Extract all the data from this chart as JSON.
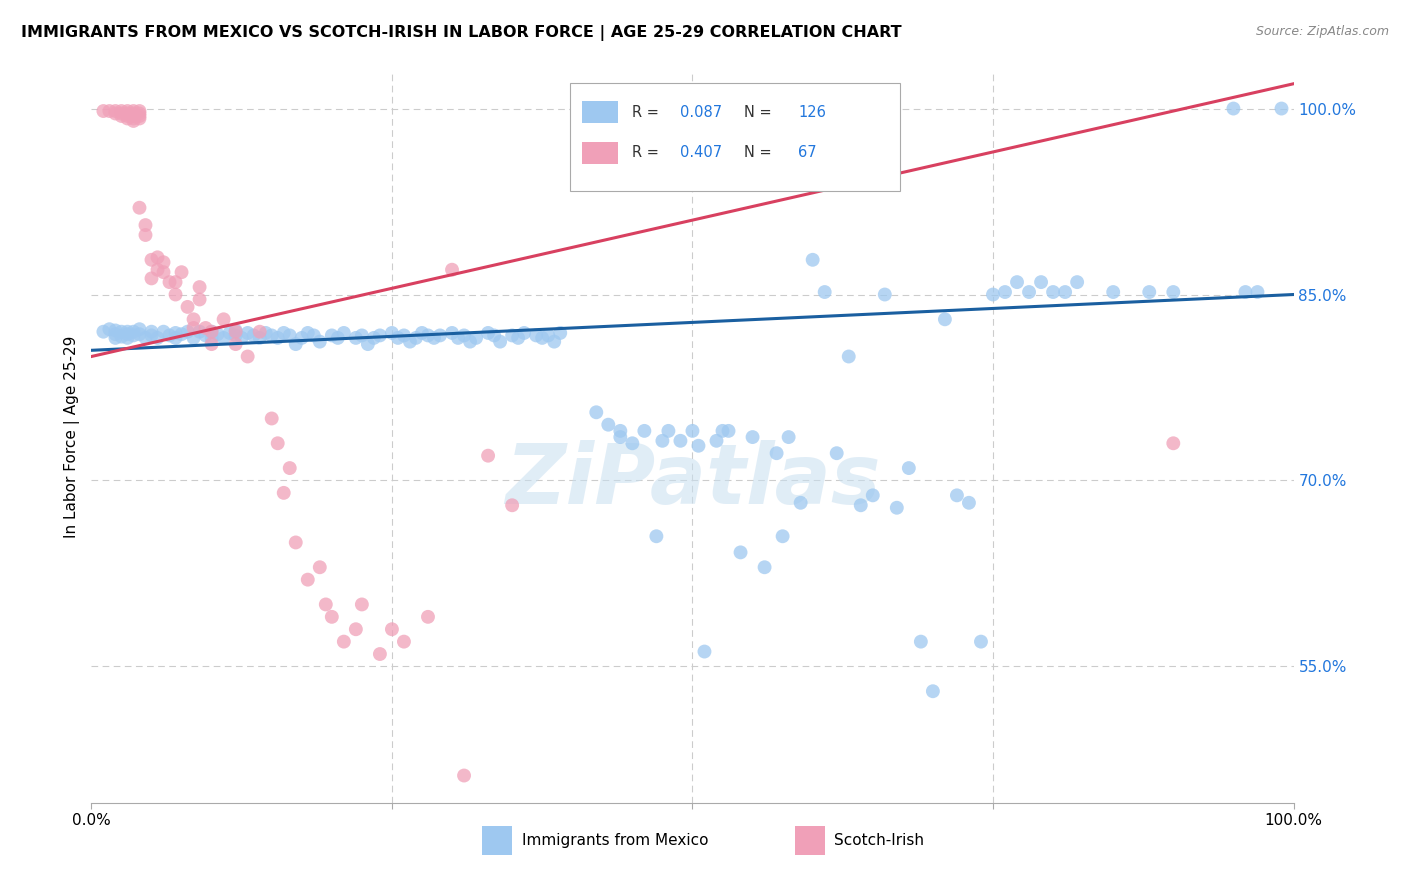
{
  "title": "IMMIGRANTS FROM MEXICO VS SCOTCH-IRISH IN LABOR FORCE | AGE 25-29 CORRELATION CHART",
  "source": "Source: ZipAtlas.com",
  "ylabel": "In Labor Force | Age 25-29",
  "y_tick_values": [
    0.55,
    0.7,
    0.85,
    1.0
  ],
  "y_tick_labels": [
    "55.0%",
    "70.0%",
    "85.0%",
    "100.0%"
  ],
  "x_lim": [
    0.0,
    1.0
  ],
  "y_lim": [
    0.44,
    1.03
  ],
  "legend_blue_r": "0.087",
  "legend_blue_n": "126",
  "legend_pink_r": "0.407",
  "legend_pink_n": " 67",
  "blue_color": "#9ec8f0",
  "pink_color": "#f0a0b8",
  "line_blue": "#1a5fa0",
  "line_pink": "#d84060",
  "blue_line_x": [
    0.0,
    1.0
  ],
  "blue_line_y": [
    0.805,
    0.85
  ],
  "pink_line_x": [
    0.0,
    1.0
  ],
  "pink_line_y": [
    0.8,
    1.02
  ],
  "blue_scatter": [
    [
      0.01,
      0.82
    ],
    [
      0.015,
      0.822
    ],
    [
      0.02,
      0.818
    ],
    [
      0.02,
      0.821
    ],
    [
      0.02,
      0.815
    ],
    [
      0.025,
      0.82
    ],
    [
      0.025,
      0.816
    ],
    [
      0.03,
      0.818
    ],
    [
      0.03,
      0.82
    ],
    [
      0.03,
      0.815
    ],
    [
      0.035,
      0.82
    ],
    [
      0.035,
      0.817
    ],
    [
      0.04,
      0.818
    ],
    [
      0.04,
      0.822
    ],
    [
      0.045,
      0.815
    ],
    [
      0.05,
      0.82
    ],
    [
      0.05,
      0.817
    ],
    [
      0.055,
      0.815
    ],
    [
      0.06,
      0.82
    ],
    [
      0.065,
      0.817
    ],
    [
      0.07,
      0.819
    ],
    [
      0.07,
      0.815
    ],
    [
      0.075,
      0.818
    ],
    [
      0.08,
      0.82
    ],
    [
      0.085,
      0.815
    ],
    [
      0.09,
      0.82
    ],
    [
      0.095,
      0.817
    ],
    [
      0.1,
      0.815
    ],
    [
      0.1,
      0.82
    ],
    [
      0.105,
      0.818
    ],
    [
      0.11,
      0.815
    ],
    [
      0.115,
      0.819
    ],
    [
      0.12,
      0.817
    ],
    [
      0.12,
      0.821
    ],
    [
      0.125,
      0.815
    ],
    [
      0.13,
      0.819
    ],
    [
      0.135,
      0.817
    ],
    [
      0.14,
      0.815
    ],
    [
      0.145,
      0.819
    ],
    [
      0.15,
      0.817
    ],
    [
      0.155,
      0.815
    ],
    [
      0.16,
      0.819
    ],
    [
      0.165,
      0.817
    ],
    [
      0.17,
      0.81
    ],
    [
      0.175,
      0.815
    ],
    [
      0.18,
      0.819
    ],
    [
      0.185,
      0.817
    ],
    [
      0.19,
      0.812
    ],
    [
      0.2,
      0.817
    ],
    [
      0.205,
      0.815
    ],
    [
      0.21,
      0.819
    ],
    [
      0.22,
      0.815
    ],
    [
      0.225,
      0.817
    ],
    [
      0.23,
      0.81
    ],
    [
      0.235,
      0.815
    ],
    [
      0.24,
      0.817
    ],
    [
      0.25,
      0.819
    ],
    [
      0.255,
      0.815
    ],
    [
      0.26,
      0.817
    ],
    [
      0.265,
      0.812
    ],
    [
      0.27,
      0.815
    ],
    [
      0.275,
      0.819
    ],
    [
      0.28,
      0.817
    ],
    [
      0.285,
      0.815
    ],
    [
      0.29,
      0.817
    ],
    [
      0.3,
      0.819
    ],
    [
      0.305,
      0.815
    ],
    [
      0.31,
      0.817
    ],
    [
      0.315,
      0.812
    ],
    [
      0.32,
      0.815
    ],
    [
      0.33,
      0.819
    ],
    [
      0.335,
      0.817
    ],
    [
      0.34,
      0.812
    ],
    [
      0.35,
      0.817
    ],
    [
      0.355,
      0.815
    ],
    [
      0.36,
      0.819
    ],
    [
      0.37,
      0.817
    ],
    [
      0.375,
      0.815
    ],
    [
      0.38,
      0.817
    ],
    [
      0.385,
      0.812
    ],
    [
      0.39,
      0.819
    ],
    [
      0.42,
      0.755
    ],
    [
      0.43,
      0.745
    ],
    [
      0.44,
      0.74
    ],
    [
      0.44,
      0.735
    ],
    [
      0.45,
      0.73
    ],
    [
      0.46,
      0.74
    ],
    [
      0.47,
      0.655
    ],
    [
      0.475,
      0.732
    ],
    [
      0.48,
      0.74
    ],
    [
      0.49,
      0.732
    ],
    [
      0.5,
      0.74
    ],
    [
      0.505,
      0.728
    ],
    [
      0.51,
      0.562
    ],
    [
      0.52,
      0.732
    ],
    [
      0.525,
      0.74
    ],
    [
      0.53,
      0.74
    ],
    [
      0.54,
      0.642
    ],
    [
      0.55,
      0.735
    ],
    [
      0.56,
      0.63
    ],
    [
      0.57,
      0.722
    ],
    [
      0.575,
      0.655
    ],
    [
      0.58,
      0.735
    ],
    [
      0.59,
      0.682
    ],
    [
      0.6,
      0.878
    ],
    [
      0.61,
      0.852
    ],
    [
      0.62,
      0.722
    ],
    [
      0.63,
      0.8
    ],
    [
      0.64,
      0.68
    ],
    [
      0.65,
      0.688
    ],
    [
      0.66,
      0.85
    ],
    [
      0.67,
      0.678
    ],
    [
      0.68,
      0.71
    ],
    [
      0.69,
      0.57
    ],
    [
      0.7,
      0.53
    ],
    [
      0.71,
      0.83
    ],
    [
      0.72,
      0.688
    ],
    [
      0.73,
      0.682
    ],
    [
      0.74,
      0.57
    ],
    [
      0.75,
      0.85
    ],
    [
      0.76,
      0.852
    ],
    [
      0.77,
      0.86
    ],
    [
      0.78,
      0.852
    ],
    [
      0.79,
      0.86
    ],
    [
      0.8,
      0.852
    ],
    [
      0.81,
      0.852
    ],
    [
      0.82,
      0.86
    ],
    [
      0.85,
      0.852
    ],
    [
      0.88,
      0.852
    ],
    [
      0.9,
      0.852
    ],
    [
      0.95,
      1.0
    ],
    [
      0.96,
      0.852
    ],
    [
      0.97,
      0.852
    ],
    [
      0.99,
      1.0
    ]
  ],
  "pink_scatter": [
    [
      0.01,
      0.998
    ],
    [
      0.015,
      0.998
    ],
    [
      0.02,
      0.998
    ],
    [
      0.02,
      0.996
    ],
    [
      0.025,
      0.998
    ],
    [
      0.025,
      0.996
    ],
    [
      0.025,
      0.994
    ],
    [
      0.03,
      0.998
    ],
    [
      0.03,
      0.996
    ],
    [
      0.03,
      0.994
    ],
    [
      0.03,
      0.992
    ],
    [
      0.035,
      0.998
    ],
    [
      0.035,
      0.996
    ],
    [
      0.035,
      0.994
    ],
    [
      0.035,
      0.992
    ],
    [
      0.035,
      0.99
    ],
    [
      0.04,
      0.998
    ],
    [
      0.04,
      0.996
    ],
    [
      0.04,
      0.994
    ],
    [
      0.04,
      0.992
    ],
    [
      0.04,
      0.92
    ],
    [
      0.045,
      0.906
    ],
    [
      0.045,
      0.898
    ],
    [
      0.05,
      0.878
    ],
    [
      0.05,
      0.863
    ],
    [
      0.055,
      0.88
    ],
    [
      0.055,
      0.87
    ],
    [
      0.06,
      0.876
    ],
    [
      0.06,
      0.868
    ],
    [
      0.065,
      0.86
    ],
    [
      0.07,
      0.85
    ],
    [
      0.07,
      0.86
    ],
    [
      0.075,
      0.868
    ],
    [
      0.08,
      0.84
    ],
    [
      0.085,
      0.823
    ],
    [
      0.085,
      0.83
    ],
    [
      0.09,
      0.846
    ],
    [
      0.09,
      0.856
    ],
    [
      0.095,
      0.823
    ],
    [
      0.1,
      0.82
    ],
    [
      0.1,
      0.81
    ],
    [
      0.11,
      0.83
    ],
    [
      0.12,
      0.82
    ],
    [
      0.12,
      0.81
    ],
    [
      0.13,
      0.8
    ],
    [
      0.14,
      0.82
    ],
    [
      0.15,
      0.75
    ],
    [
      0.155,
      0.73
    ],
    [
      0.16,
      0.69
    ],
    [
      0.165,
      0.71
    ],
    [
      0.17,
      0.65
    ],
    [
      0.18,
      0.62
    ],
    [
      0.19,
      0.63
    ],
    [
      0.195,
      0.6
    ],
    [
      0.2,
      0.59
    ],
    [
      0.21,
      0.57
    ],
    [
      0.22,
      0.58
    ],
    [
      0.225,
      0.6
    ],
    [
      0.24,
      0.56
    ],
    [
      0.25,
      0.58
    ],
    [
      0.26,
      0.57
    ],
    [
      0.28,
      0.59
    ],
    [
      0.3,
      0.87
    ],
    [
      0.31,
      0.462
    ],
    [
      0.33,
      0.72
    ],
    [
      0.35,
      0.68
    ],
    [
      0.9,
      0.73
    ]
  ]
}
